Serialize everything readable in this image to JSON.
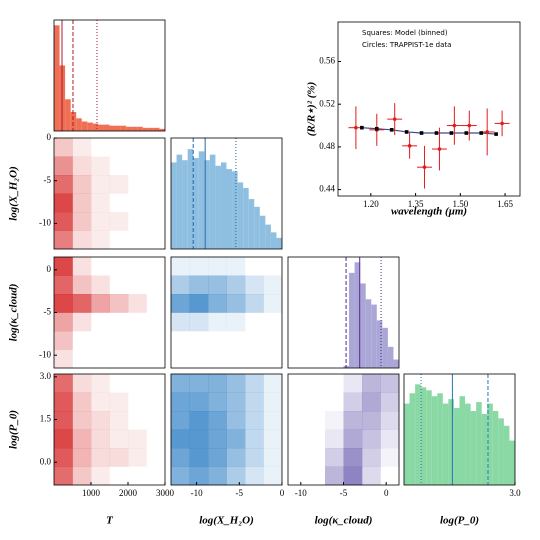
{
  "chart_data": [
    {
      "type": "histogram",
      "color": "#ef6f55",
      "line_color": "#b2182b",
      "bins": [
        0,
        150,
        300,
        450,
        600,
        750,
        900,
        1050,
        1200,
        1350,
        1500,
        1650,
        1800,
        1950,
        2100,
        2250,
        2400,
        2550,
        2700,
        2850,
        3000
      ],
      "counts": [
        100,
        62,
        30,
        18,
        12,
        9,
        8,
        7,
        6,
        6,
        5,
        5,
        5,
        4,
        4,
        4,
        3,
        3,
        3,
        2
      ],
      "xlim": [
        0,
        3000
      ],
      "ylim": [
        0,
        105
      ],
      "lines": [
        216,
        513,
        1162
      ],
      "line_styles": [
        "solid",
        "dashed",
        "dotted"
      ]
    },
    {
      "type": "density",
      "color": "#d62728",
      "xlim": [
        0,
        3000
      ],
      "ylim": [
        -13,
        0
      ],
      "z": [
        [
          3,
          1,
          0,
          0,
          0,
          0
        ],
        [
          6,
          2,
          1,
          0,
          0,
          0
        ],
        [
          8,
          3,
          1,
          1,
          0,
          0
        ],
        [
          10,
          3,
          1,
          0,
          0,
          0
        ],
        [
          9,
          3,
          1,
          1,
          0,
          0
        ],
        [
          7,
          2,
          1,
          0,
          0,
          0
        ]
      ],
      "ylabel": "log(X_H₂O)",
      "yticks": [
        0,
        -5,
        -10
      ]
    },
    {
      "type": "density",
      "color": "#d62728",
      "xlim": [
        0,
        3000
      ],
      "ylim": [
        -11.5,
        1.5
      ],
      "z": [
        [
          6,
          1,
          0,
          0,
          0,
          0
        ],
        [
          5,
          2,
          1,
          0,
          0,
          0
        ],
        [
          6,
          5,
          3,
          2,
          1,
          0
        ],
        [
          3,
          1,
          0,
          0,
          0,
          0
        ],
        [
          2,
          0,
          0,
          0,
          0,
          0
        ],
        [
          1,
          0,
          0,
          0,
          0,
          0
        ]
      ],
      "ylabel": "log(κ_cloud)",
      "yticks": [
        0,
        -5,
        -10
      ]
    },
    {
      "type": "density",
      "color": "#d62728",
      "xlim": [
        0,
        3000
      ],
      "ylim": [
        -0.8,
        3.1
      ],
      "z": [
        [
          8,
          2,
          1,
          0,
          0,
          0
        ],
        [
          9,
          3,
          1,
          1,
          0,
          0
        ],
        [
          9,
          3,
          2,
          1,
          0,
          0
        ],
        [
          10,
          4,
          2,
          1,
          1,
          0
        ],
        [
          9,
          4,
          2,
          2,
          1,
          0
        ],
        [
          8,
          3,
          1,
          0,
          0,
          0
        ]
      ],
      "xlabel": "T",
      "xticks": [
        1000,
        2000,
        3000
      ],
      "ylabel": "log(P_0)",
      "yticks": [
        {
          "value": 3,
          "label": "3.0"
        },
        {
          "value": 1.5,
          "label": "1.5"
        },
        {
          "value": 0,
          "label": "0.0"
        }
      ]
    },
    {
      "type": "histogram",
      "color": "#8fbfe0",
      "line_color": "#2166ac",
      "bins": [
        -13,
        -12.35,
        -11.7,
        -11.05,
        -10.4,
        -9.75,
        -9.1,
        -8.45,
        -7.8,
        -7.15,
        -6.5,
        -5.85,
        -5.2,
        -4.55,
        -3.9,
        -3.25,
        -2.6,
        -1.95,
        -1.3,
        -0.65,
        0
      ],
      "counts": [
        78,
        85,
        80,
        90,
        82,
        88,
        80,
        85,
        75,
        78,
        72,
        70,
        60,
        55,
        45,
        38,
        30,
        22,
        15,
        10
      ],
      "xlim": [
        -13,
        0
      ],
      "ylim": [
        0,
        100
      ],
      "lines": [
        -10.4,
        -9.0,
        -5.4
      ],
      "line_styles": [
        "dashed",
        "solid",
        "dotted"
      ]
    },
    {
      "type": "density",
      "color": "#3a86c8",
      "xlim": [
        -13,
        0
      ],
      "ylim": [
        -11.5,
        1.5
      ],
      "z": [
        [
          1,
          1,
          1,
          1,
          0,
          0
        ],
        [
          4,
          5,
          5,
          4,
          2,
          1
        ],
        [
          7,
          8,
          6,
          5,
          3,
          1
        ],
        [
          2,
          2,
          1,
          1,
          0,
          0
        ],
        [
          0,
          0,
          0,
          0,
          0,
          0
        ],
        [
          0,
          0,
          0,
          0,
          0,
          0
        ]
      ]
    },
    {
      "type": "density",
      "color": "#3a86c8",
      "xlim": [
        -13,
        0
      ],
      "ylim": [
        -0.8,
        3.1
      ],
      "z": [
        [
          6,
          6,
          6,
          5,
          3,
          1
        ],
        [
          7,
          7,
          6,
          5,
          3,
          1
        ],
        [
          7,
          8,
          7,
          5,
          3,
          1
        ],
        [
          8,
          8,
          7,
          6,
          3,
          1
        ],
        [
          7,
          8,
          7,
          5,
          3,
          1
        ],
        [
          6,
          7,
          6,
          4,
          2,
          1
        ]
      ],
      "xlabel": "log(X_H₂O)",
      "xticks": [
        -10,
        -5,
        0
      ]
    },
    {
      "type": "histogram",
      "color": "#aaa6d6",
      "line_color": "#54278f",
      "bins": [
        -11.5,
        -10.85,
        -10.2,
        -9.55,
        -8.9,
        -8.25,
        -7.6,
        -6.95,
        -6.3,
        -5.65,
        -5,
        -4.35,
        -3.7,
        -3.05,
        -2.4,
        -1.75,
        -1.1,
        -0.45,
        0.2,
        0.85,
        1.5
      ],
      "counts": [
        0,
        0,
        0,
        0,
        0,
        0,
        0,
        0,
        0,
        0,
        2,
        90,
        100,
        80,
        65,
        60,
        45,
        38,
        20,
        8
      ],
      "xlim": [
        -11.5,
        1.5
      ],
      "ylim": [
        0,
        105
      ],
      "lines": [
        -4.7,
        -3.1,
        -0.6
      ],
      "line_styles": [
        "dashed",
        "solid",
        "dotted"
      ]
    },
    {
      "type": "density",
      "color": "#7b6fb8",
      "xlim": [
        -11.5,
        1.5
      ],
      "ylim": [
        -0.8,
        3.1
      ],
      "z": [
        [
          0,
          0,
          0,
          2,
          6,
          5
        ],
        [
          0,
          0,
          0,
          4,
          7,
          4
        ],
        [
          0,
          0,
          1,
          6,
          6,
          3
        ],
        [
          0,
          0,
          2,
          7,
          5,
          2
        ],
        [
          0,
          0,
          4,
          9,
          4,
          1
        ],
        [
          0,
          0,
          6,
          10,
          3,
          0
        ]
      ],
      "xlabel": "log(κ_cloud)",
      "xticks": [
        -10,
        -5,
        0
      ]
    },
    {
      "type": "histogram",
      "color": "#8ad8a4",
      "line_color": "#1f78b4",
      "bins": [
        -0.9,
        -0.705,
        -0.51,
        -0.315,
        -0.12,
        0.075,
        0.27,
        0.465,
        0.66,
        0.855,
        1.05,
        1.245,
        1.44,
        1.635,
        1.83,
        2.025,
        2.22,
        2.415,
        2.61,
        2.805,
        3.0
      ],
      "counts": [
        55,
        62,
        68,
        66,
        64,
        60,
        62,
        55,
        58,
        52,
        60,
        55,
        50,
        56,
        48,
        55,
        50,
        45,
        40,
        30
      ],
      "xlim": [
        -0.9,
        3.0
      ],
      "ylim": [
        0,
        75
      ],
      "lines": [
        -0.3,
        0.8,
        2.05
      ],
      "line_styles": [
        "dotted",
        "solid",
        "dashed"
      ],
      "xlabel": "log(P_0)",
      "xticks": [
        {
          "value": 3,
          "label": "3.0"
        }
      ]
    },
    {
      "type": "spectrum",
      "xlabel": "wavelength (μm)",
      "ylabel": "(R/R⋆)² (%)",
      "xlim": [
        1.09,
        1.7
      ],
      "ylim": [
        0.434,
        0.597
      ],
      "xticks": [
        {
          "value": 1.2,
          "label": "1.20"
        },
        {
          "value": 1.35,
          "label": "1.35"
        },
        {
          "value": 1.5,
          "label": "1.50"
        },
        {
          "value": 1.65,
          "label": "1.65"
        }
      ],
      "yticks": [
        0.44,
        0.48,
        0.52,
        0.56
      ],
      "series": [
        {
          "name": "Squares: Model (binned)",
          "color": "#000000",
          "line_color": "#3b4a8c",
          "x": [
            1.17,
            1.22,
            1.27,
            1.32,
            1.37,
            1.42,
            1.47,
            1.52,
            1.57,
            1.62
          ],
          "values": [
            0.498,
            0.497,
            0.496,
            0.494,
            0.493,
            0.493,
            0.493,
            0.493,
            0.493,
            0.492
          ]
        },
        {
          "name": "Circles: TRAPPIST-1e data",
          "color": "#e31a1c",
          "x": [
            1.15,
            1.22,
            1.28,
            1.33,
            1.38,
            1.43,
            1.48,
            1.53,
            1.59,
            1.64
          ],
          "values": [
            0.498,
            0.496,
            0.506,
            0.481,
            0.461,
            0.478,
            0.5,
            0.5,
            0.494,
            0.502
          ],
          "yerr": [
            0.02,
            0.015,
            0.015,
            0.012,
            0.02,
            0.02,
            0.018,
            0.014,
            0.022,
            0.012
          ],
          "xerr": [
            0.025,
            0.025,
            0.025,
            0.025,
            0.025,
            0.025,
            0.025,
            0.025,
            0.025,
            0.025
          ]
        }
      ]
    }
  ]
}
